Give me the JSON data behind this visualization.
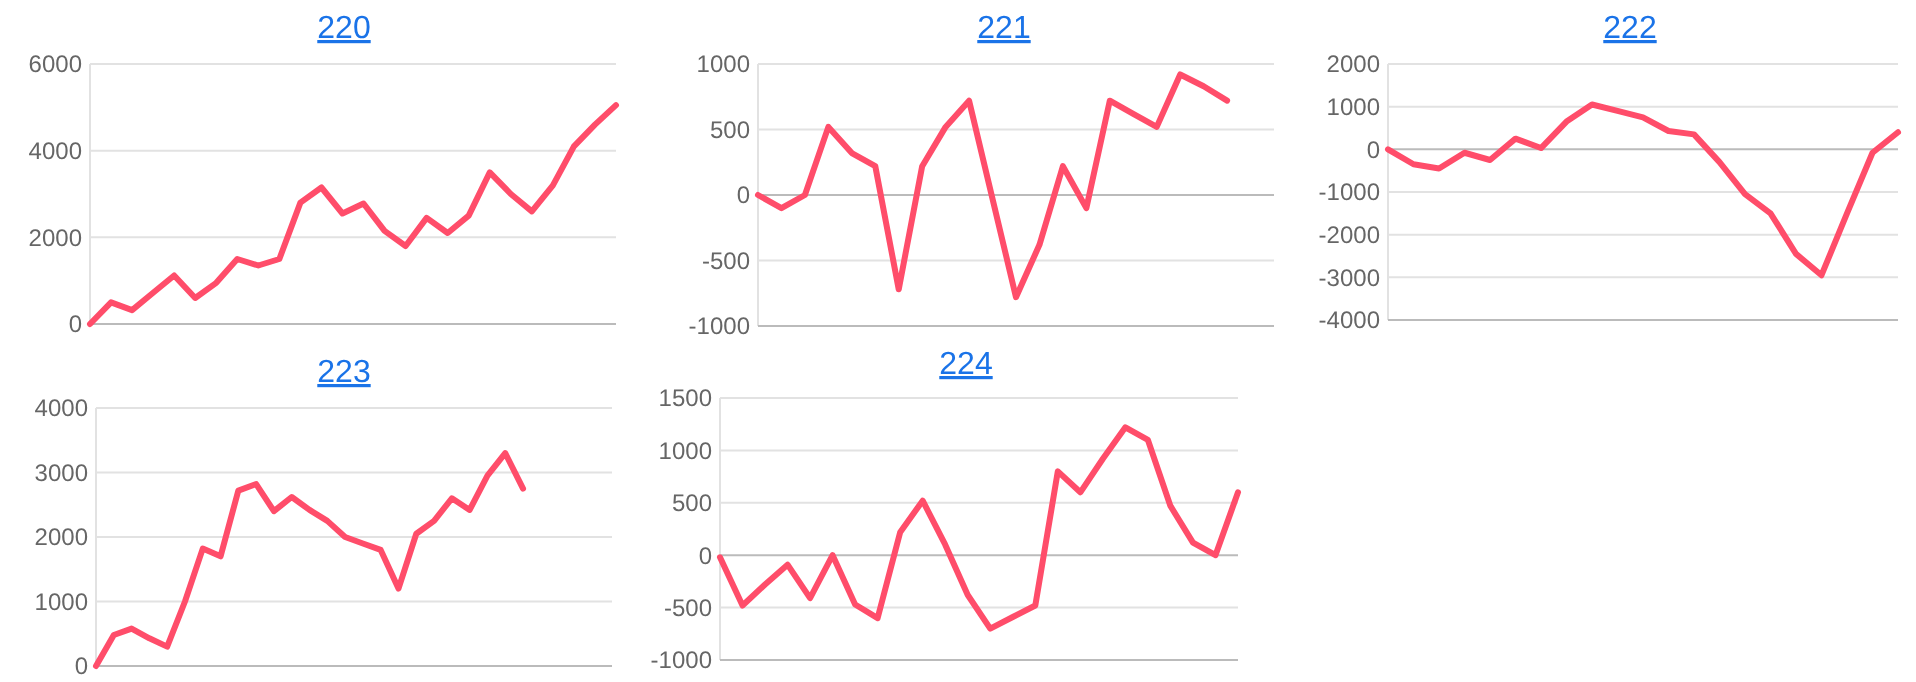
{
  "chart_data": [
    {
      "type": "line",
      "title": "220",
      "categories": [
        null,
        null,
        null,
        null,
        null,
        null,
        null,
        null,
        null,
        null,
        null,
        null,
        null,
        null,
        null,
        null,
        null,
        null,
        null,
        null,
        null,
        null,
        null,
        null,
        null,
        null
      ],
      "series": [
        {
          "color": "#ff4d6a",
          "values": [
            0,
            500,
            320,
            720,
            1120,
            600,
            950,
            1500,
            1350,
            1500,
            2800,
            3150,
            2550,
            2780,
            2150,
            1800,
            2450,
            2100,
            2500,
            3500,
            3000,
            2600,
            3200,
            4100,
            4600,
            5050
          ]
        }
      ],
      "ylim": [
        0,
        6000
      ],
      "yticks": [
        0,
        2000,
        4000,
        6000
      ],
      "grid": "y"
    },
    {
      "type": "line",
      "title": "221",
      "categories": [
        null,
        null,
        null,
        null,
        null,
        null,
        null,
        null,
        null,
        null,
        null,
        null,
        null,
        null,
        null,
        null,
        null,
        null,
        null,
        null,
        null,
        null,
        null
      ],
      "series": [
        {
          "color": "#ff4d6a",
          "values": [
            0,
            -100,
            0,
            520,
            320,
            220,
            -720,
            220,
            520,
            720,
            -30,
            -780,
            -380,
            220,
            -100,
            720,
            620,
            520,
            920,
            830,
            720,
            null,
            null
          ]
        }
      ],
      "ylim": [
        -1000,
        1000
      ],
      "yticks": [
        -1000,
        -500,
        0,
        500,
        1000
      ],
      "grid": "y"
    },
    {
      "type": "line",
      "title": "222",
      "categories": [
        null,
        null,
        null,
        null,
        null,
        null,
        null,
        null,
        null,
        null,
        null,
        null,
        null,
        null,
        null,
        null,
        null,
        null,
        null,
        null,
        null
      ],
      "series": [
        {
          "color": "#ff4d6a",
          "values": [
            0,
            -350,
            -450,
            -80,
            -250,
            250,
            30,
            650,
            1050,
            900,
            750,
            430,
            350,
            -300,
            -1050,
            -1500,
            -2450,
            -2950,
            -1500,
            -80,
            400
          ]
        }
      ],
      "ylim": [
        -4000,
        2000
      ],
      "yticks": [
        -4000,
        -3000,
        -2000,
        -1000,
        0,
        1000,
        2000
      ],
      "grid": "y"
    },
    {
      "type": "line",
      "title": "223",
      "categories": [
        null,
        null,
        null,
        null,
        null,
        null,
        null,
        null,
        null,
        null,
        null,
        null,
        null,
        null,
        null,
        null,
        null,
        null,
        null,
        null,
        null,
        null,
        null,
        null,
        null,
        null,
        null,
        null,
        null,
        null
      ],
      "series": [
        {
          "color": "#ff4d6a",
          "values": [
            0,
            480,
            580,
            430,
            300,
            1000,
            1820,
            1700,
            2720,
            2820,
            2400,
            2620,
            2420,
            2250,
            2000,
            1900,
            1800,
            1200,
            2050,
            2250,
            2600,
            2420,
            2950,
            3300,
            2750,
            null,
            null,
            null,
            null,
            null
          ]
        }
      ],
      "ylim": [
        0,
        4000
      ],
      "yticks": [
        0,
        1000,
        2000,
        3000,
        4000
      ],
      "grid": "y"
    },
    {
      "type": "line",
      "title": "224",
      "categories": [
        null,
        null,
        null,
        null,
        null,
        null,
        null,
        null,
        null,
        null,
        null,
        null,
        null,
        null,
        null,
        null,
        null,
        null,
        null,
        null,
        null,
        null,
        null,
        null
      ],
      "series": [
        {
          "color": "#ff4d6a",
          "values": [
            -20,
            -480,
            -280,
            -90,
            -410,
            0,
            -470,
            -600,
            220,
            520,
            100,
            -380,
            -700,
            -590,
            -480,
            800,
            600,
            920,
            1220,
            1100,
            470,
            120,
            0,
            600
          ]
        }
      ],
      "ylim": [
        -1000,
        1500
      ],
      "yticks": [
        -1000,
        -500,
        0,
        500,
        1000,
        1500
      ],
      "grid": "y"
    }
  ]
}
